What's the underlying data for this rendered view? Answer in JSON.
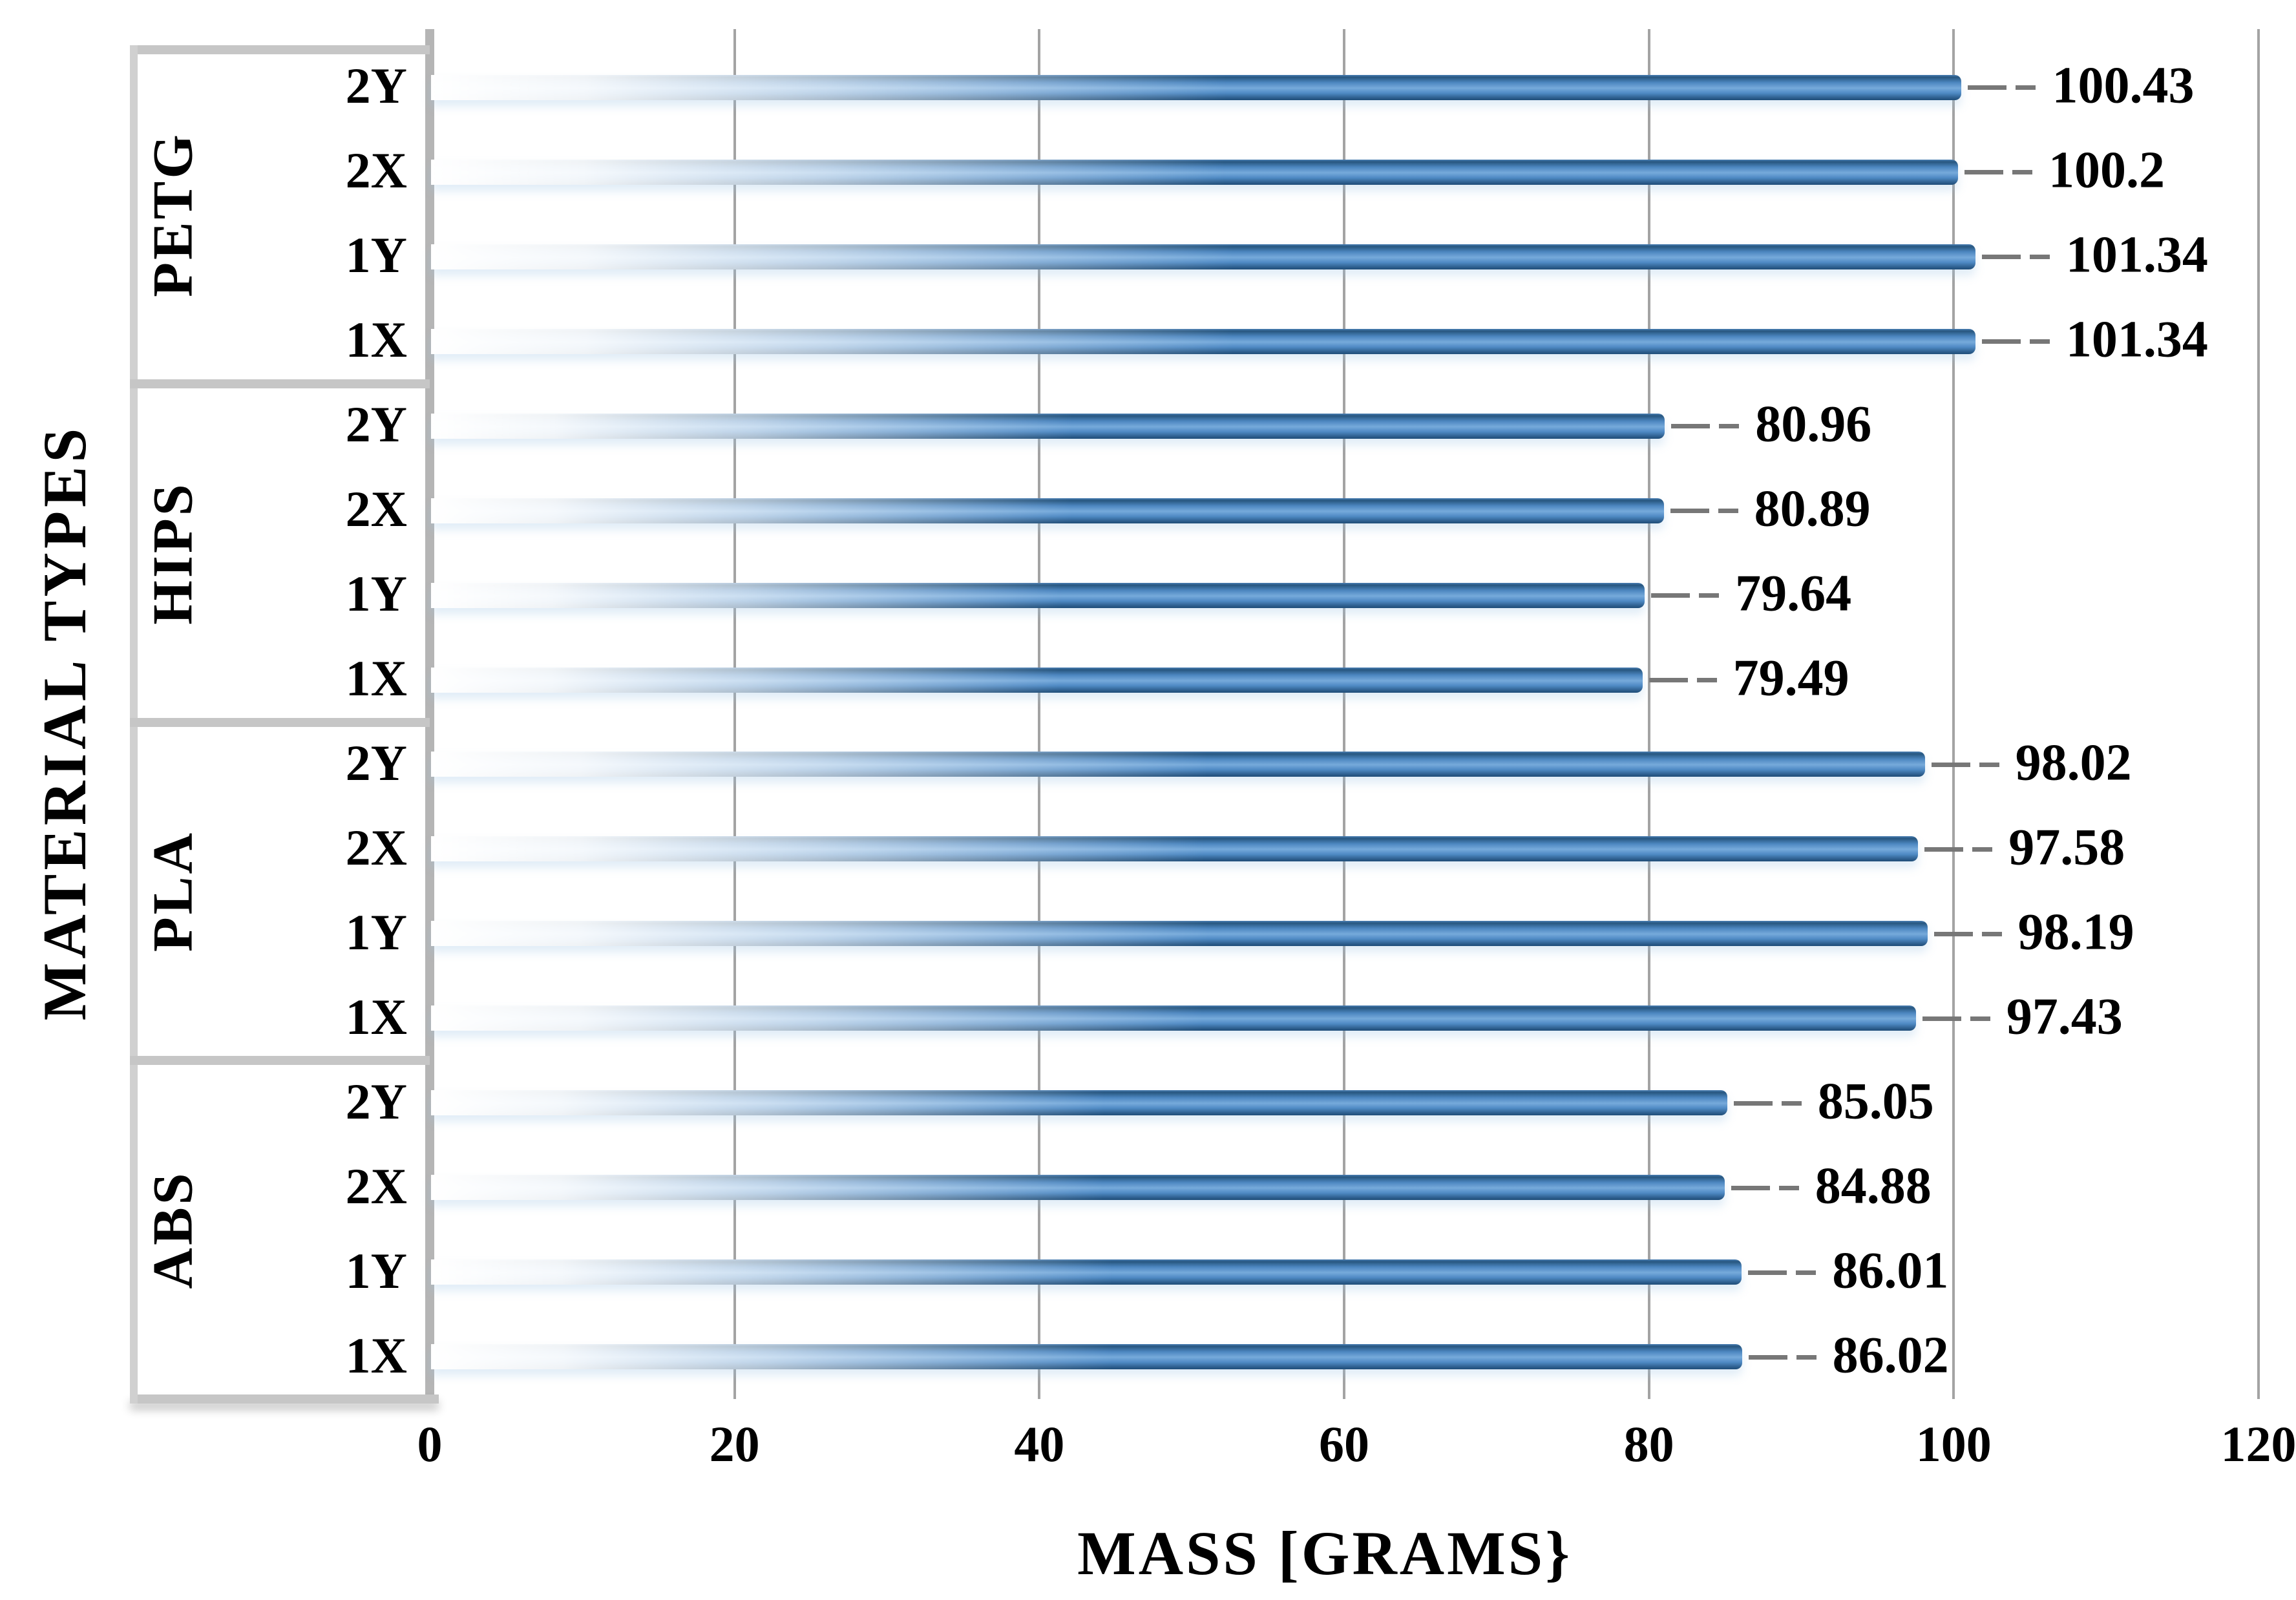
{
  "chart_data": {
    "type": "bar",
    "orientation": "horizontal",
    "title": "",
    "xlabel": "MASS [GRAMS}",
    "ylabel": "MATERIAL TYPES",
    "xlim": [
      0,
      120
    ],
    "xticks": [
      "0",
      "20",
      "40",
      "60",
      "80",
      "100",
      "120"
    ],
    "grid": true,
    "legend": "none",
    "bar_color_main": "#4f8ac4",
    "bar_color_dark": "#1f4e79",
    "gridline_color": "#a3a3a3",
    "category_box_color": "#c6c6c6",
    "leader_line_color": "#777777",
    "groups": [
      {
        "name": "PETG",
        "items": [
          {
            "label": "2Y",
            "value": 100.43,
            "value_text": "100.43"
          },
          {
            "label": "2X",
            "value": 100.2,
            "value_text": "100.2"
          },
          {
            "label": "1Y",
            "value": 101.34,
            "value_text": "101.34"
          },
          {
            "label": "1X",
            "value": 101.34,
            "value_text": "101.34"
          }
        ]
      },
      {
        "name": "HIPS",
        "items": [
          {
            "label": "2Y",
            "value": 80.96,
            "value_text": "80.96"
          },
          {
            "label": "2X",
            "value": 80.89,
            "value_text": "80.89"
          },
          {
            "label": "1Y",
            "value": 79.64,
            "value_text": "79.64"
          },
          {
            "label": "1X",
            "value": 79.49,
            "value_text": "79.49"
          }
        ]
      },
      {
        "name": "PLA",
        "items": [
          {
            "label": "2Y",
            "value": 98.02,
            "value_text": "98.02"
          },
          {
            "label": "2X",
            "value": 97.58,
            "value_text": "97.58"
          },
          {
            "label": "1Y",
            "value": 98.19,
            "value_text": "98.19"
          },
          {
            "label": "1X",
            "value": 97.43,
            "value_text": "97.43"
          }
        ]
      },
      {
        "name": "ABS",
        "items": [
          {
            "label": "2Y",
            "value": 85.05,
            "value_text": "85.05"
          },
          {
            "label": "2X",
            "value": 84.88,
            "value_text": "84.88"
          },
          {
            "label": "1Y",
            "value": 86.01,
            "value_text": "86.01"
          },
          {
            "label": "1X",
            "value": 86.02,
            "value_text": "86.02"
          }
        ]
      }
    ]
  }
}
